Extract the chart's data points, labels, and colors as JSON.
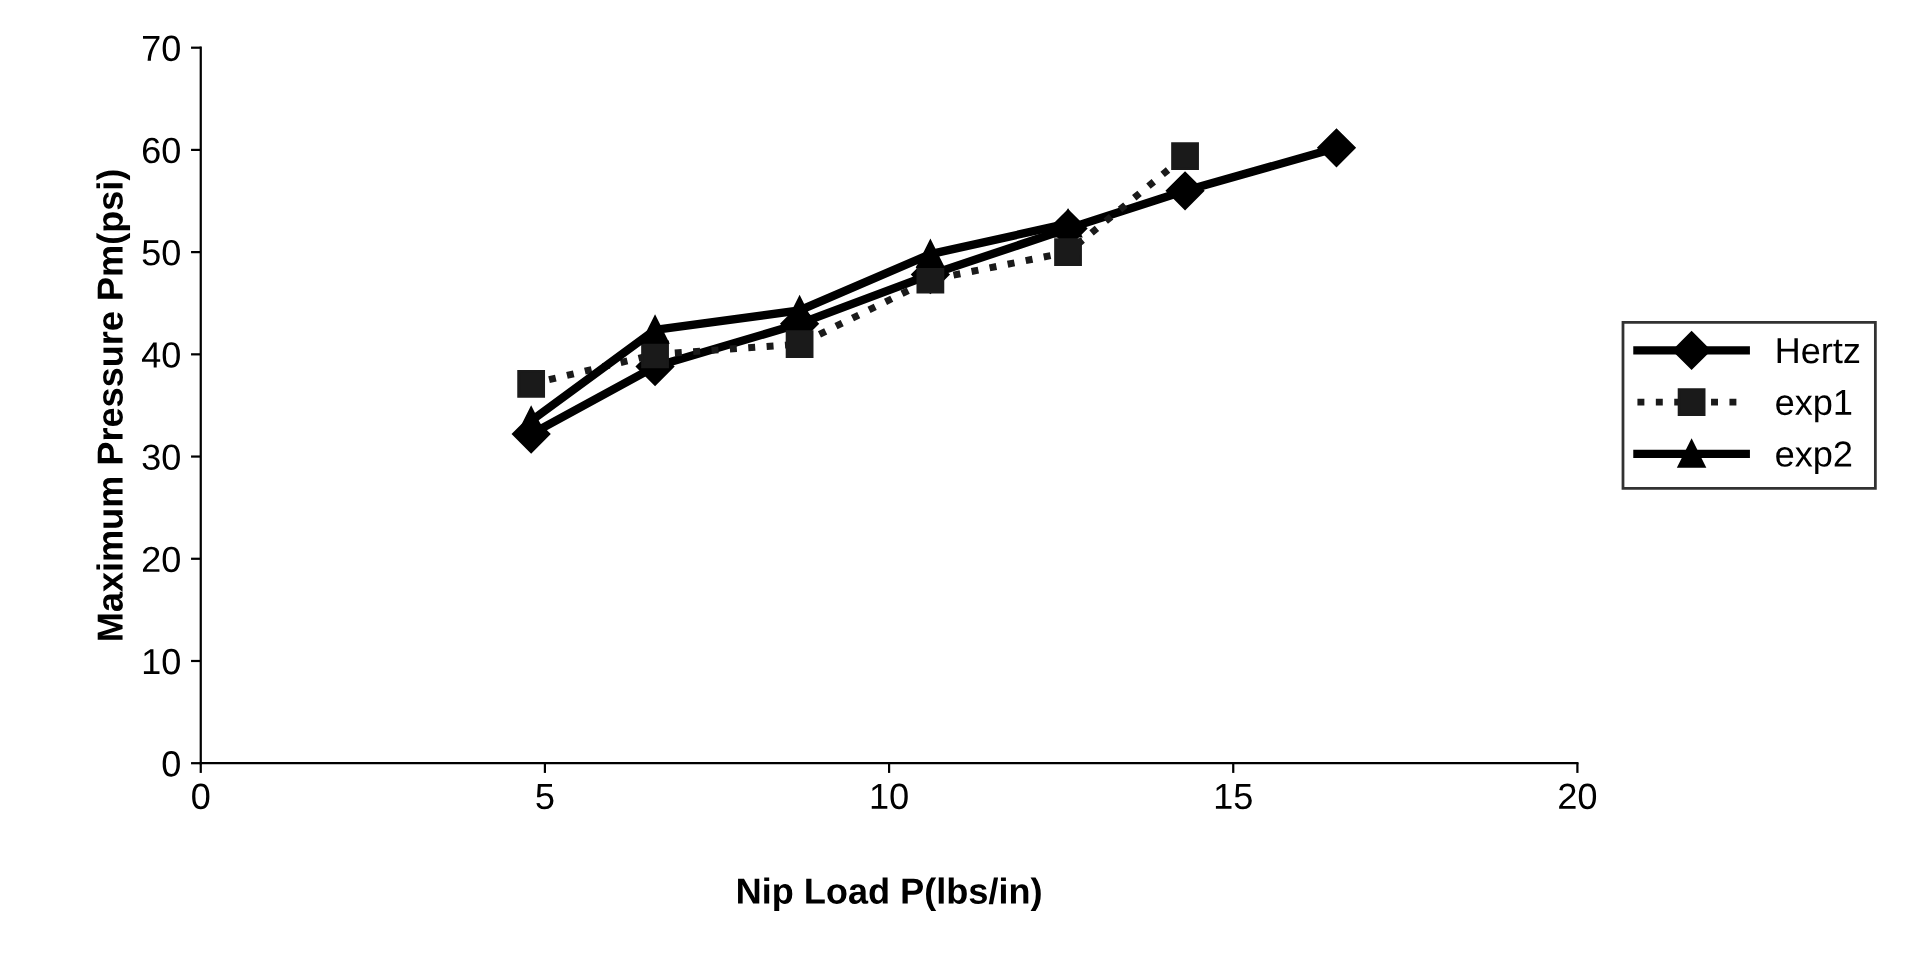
{
  "chart_data": {
    "type": "line",
    "xlabel": "Nip Load P(lbs/in)",
    "ylabel": "Maximum Pressure Pm(psi)",
    "xlim": [
      0,
      20
    ],
    "xticks": [
      0,
      5,
      10,
      15,
      20
    ],
    "ylim": [
      0,
      70
    ],
    "yticks": [
      0,
      10,
      20,
      30,
      40,
      50,
      60,
      70
    ],
    "grid": false,
    "legend": "right",
    "series": [
      {
        "name": "Hertz",
        "color": "#000000",
        "marker": "diamond",
        "line_style": "solid",
        "x": [
          4.8,
          6.6,
          8.7,
          10.6,
          12.6,
          14.3,
          16.5
        ],
        "values": [
          32.2,
          38.8,
          43,
          47.8,
          52.3,
          56,
          60.2
        ]
      },
      {
        "name": "exp1",
        "color": "#1a1a1a",
        "marker": "square",
        "line_style": "dotted",
        "x": [
          4.8,
          6.6,
          8.7,
          10.6,
          12.6,
          14.3
        ],
        "values": [
          37.1,
          40,
          41,
          47.3,
          50,
          59.4
        ]
      },
      {
        "name": "exp2",
        "color": "#000000",
        "marker": "triangle",
        "line_style": "solid",
        "x": [
          4.8,
          6.6,
          8.7,
          10.6,
          12.6
        ],
        "values": [
          33.5,
          42.4,
          44.3,
          49.8,
          52.8
        ]
      }
    ]
  }
}
